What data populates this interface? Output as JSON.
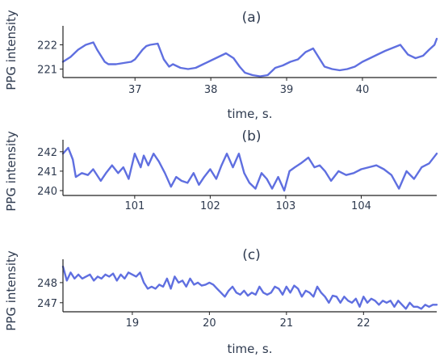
{
  "chart_data": [
    {
      "type": "line",
      "title": "(a)",
      "xlabel": "time, s.",
      "ylabel": "PPG intensity",
      "xlim": [
        36.05,
        40.98
      ],
      "ylim": [
        220.65,
        222.65
      ],
      "xticks": [
        37,
        38,
        39,
        40
      ],
      "xtick_labels": [
        "37",
        "38",
        "39",
        "40"
      ],
      "yticks": [
        221,
        222
      ],
      "ytick_labels": [
        "221",
        "222"
      ],
      "color": "#5f6fe0",
      "series": [
        {
          "x": [
            36.05,
            36.15,
            36.25,
            36.35,
            36.45,
            36.5,
            36.6,
            36.65,
            36.75,
            36.85,
            36.95,
            37.0,
            37.05,
            37.1,
            37.15,
            37.2,
            37.3,
            37.38,
            37.45,
            37.5,
            37.6,
            37.7,
            37.8,
            37.9,
            38.0,
            38.1,
            38.2,
            38.3,
            38.38,
            38.45,
            38.55,
            38.65,
            38.75,
            38.85,
            38.95,
            39.05,
            39.15,
            39.25,
            39.35,
            39.5,
            39.6,
            39.7,
            39.8,
            39.9,
            40.0,
            40.1,
            40.2,
            40.3,
            40.5,
            40.6,
            40.7,
            40.8,
            40.88,
            40.95,
            40.98
          ],
          "y": [
            221.3,
            221.5,
            221.8,
            222.0,
            222.1,
            221.8,
            221.3,
            221.2,
            221.2,
            221.25,
            221.3,
            221.4,
            221.6,
            221.8,
            221.95,
            222.0,
            222.05,
            221.4,
            221.1,
            221.2,
            221.05,
            221.0,
            221.05,
            221.2,
            221.35,
            221.5,
            221.65,
            221.45,
            221.1,
            220.85,
            220.75,
            220.7,
            220.75,
            221.05,
            221.15,
            221.3,
            221.4,
            221.7,
            221.85,
            221.1,
            221.0,
            220.95,
            221.0,
            221.1,
            221.3,
            221.45,
            221.6,
            221.75,
            222.0,
            221.6,
            221.45,
            221.55,
            221.8,
            222.0,
            222.25
          ]
        }
      ]
    },
    {
      "type": "line",
      "title": "(b)",
      "xlabel": "",
      "ylabel": "PPG intensity",
      "xlim": [
        100.05,
        105.0
      ],
      "ylim": [
        239.75,
        242.45
      ],
      "xticks": [
        101,
        102,
        103,
        104
      ],
      "xtick_labels": [
        "101",
        "102",
        "103",
        "104"
      ],
      "yticks": [
        240,
        241,
        242
      ],
      "ytick_labels": [
        "240",
        "241",
        "242"
      ],
      "color": "#5f6fe0",
      "series": [
        {
          "x": [
            100.05,
            100.12,
            100.18,
            100.22,
            100.3,
            100.38,
            100.45,
            100.55,
            100.62,
            100.7,
            100.78,
            100.85,
            100.92,
            101.0,
            101.08,
            101.12,
            101.18,
            101.25,
            101.32,
            101.4,
            101.48,
            101.55,
            101.62,
            101.7,
            101.78,
            101.85,
            101.92,
            102.0,
            102.08,
            102.15,
            102.22,
            102.3,
            102.38,
            102.45,
            102.52,
            102.6,
            102.68,
            102.75,
            102.82,
            102.9,
            102.98,
            103.05,
            103.12,
            103.2,
            103.3,
            103.38,
            103.45,
            103.52,
            103.6,
            103.7,
            103.8,
            103.9,
            104.0,
            104.1,
            104.2,
            104.3,
            104.4,
            104.5,
            104.6,
            104.7,
            104.8,
            104.9,
            105.0
          ],
          "y": [
            241.9,
            242.2,
            241.6,
            240.7,
            240.9,
            240.8,
            241.1,
            240.5,
            240.9,
            241.3,
            240.9,
            241.2,
            240.6,
            241.9,
            241.2,
            241.8,
            241.3,
            241.9,
            241.5,
            240.9,
            240.2,
            240.7,
            240.5,
            240.4,
            240.9,
            240.3,
            240.7,
            241.1,
            240.6,
            241.3,
            241.9,
            241.2,
            241.9,
            240.9,
            240.4,
            240.1,
            240.9,
            240.6,
            240.1,
            240.7,
            240.0,
            241.0,
            241.2,
            241.4,
            241.7,
            241.2,
            241.3,
            241.0,
            240.5,
            241.0,
            240.8,
            240.9,
            241.1,
            241.2,
            241.3,
            241.1,
            240.8,
            240.1,
            241.0,
            240.6,
            241.2,
            241.4,
            241.9
          ]
        }
      ]
    },
    {
      "type": "line",
      "title": "(c)",
      "xlabel": "time, s.",
      "ylabel": "PPG intensity",
      "xlim": [
        18.1,
        22.95
      ],
      "ylim": [
        246.55,
        249.0
      ],
      "xticks": [
        19,
        20,
        21,
        22
      ],
      "xtick_labels": [
        "19",
        "20",
        "21",
        "22"
      ],
      "yticks": [
        247,
        248
      ],
      "ytick_labels": [
        "247",
        "248"
      ],
      "color": "#5f6fe0",
      "series": [
        {
          "x": [
            18.1,
            18.15,
            18.2,
            18.25,
            18.3,
            18.35,
            18.4,
            18.45,
            18.5,
            18.55,
            18.6,
            18.65,
            18.7,
            18.75,
            18.8,
            18.85,
            18.9,
            18.95,
            19.0,
            19.05,
            19.1,
            19.15,
            19.2,
            19.25,
            19.3,
            19.35,
            19.4,
            19.45,
            19.5,
            19.55,
            19.6,
            19.65,
            19.7,
            19.75,
            19.8,
            19.85,
            19.9,
            19.95,
            20.0,
            20.05,
            20.1,
            20.15,
            20.2,
            20.25,
            20.3,
            20.35,
            20.4,
            20.45,
            20.5,
            20.55,
            20.6,
            20.65,
            20.7,
            20.75,
            20.8,
            20.85,
            20.9,
            20.95,
            21.0,
            21.05,
            21.1,
            21.15,
            21.2,
            21.25,
            21.3,
            21.35,
            21.4,
            21.45,
            21.5,
            21.55,
            21.6,
            21.65,
            21.7,
            21.75,
            21.8,
            21.85,
            21.9,
            21.95,
            22.0,
            22.05,
            22.1,
            22.15,
            22.2,
            22.25,
            22.3,
            22.35,
            22.4,
            22.45,
            22.5,
            22.55,
            22.6,
            22.65,
            22.7,
            22.75,
            22.8,
            22.85,
            22.9,
            22.95
          ],
          "y": [
            248.8,
            248.1,
            248.5,
            248.2,
            248.4,
            248.2,
            248.3,
            248.4,
            248.1,
            248.3,
            248.2,
            248.4,
            248.3,
            248.45,
            248.1,
            248.4,
            248.2,
            248.5,
            248.4,
            248.3,
            248.5,
            248.0,
            247.7,
            247.8,
            247.7,
            247.9,
            247.8,
            248.2,
            247.7,
            248.3,
            248.0,
            248.1,
            247.8,
            248.2,
            247.9,
            248.0,
            247.85,
            247.9,
            248.0,
            247.9,
            247.7,
            247.5,
            247.3,
            247.6,
            247.8,
            247.5,
            247.4,
            247.6,
            247.35,
            247.5,
            247.4,
            247.8,
            247.5,
            247.4,
            247.5,
            247.8,
            247.7,
            247.4,
            247.8,
            247.5,
            247.85,
            247.7,
            247.3,
            247.6,
            247.5,
            247.3,
            247.8,
            247.5,
            247.3,
            247.0,
            247.35,
            247.3,
            247.0,
            247.3,
            247.1,
            247.0,
            247.2,
            246.8,
            247.3,
            247.0,
            247.2,
            247.1,
            246.9,
            247.1,
            247.0,
            247.1,
            246.8,
            247.1,
            246.9,
            246.7,
            247.0,
            246.8,
            246.8,
            246.7,
            246.9,
            246.8,
            246.9,
            246.9
          ]
        }
      ]
    }
  ]
}
